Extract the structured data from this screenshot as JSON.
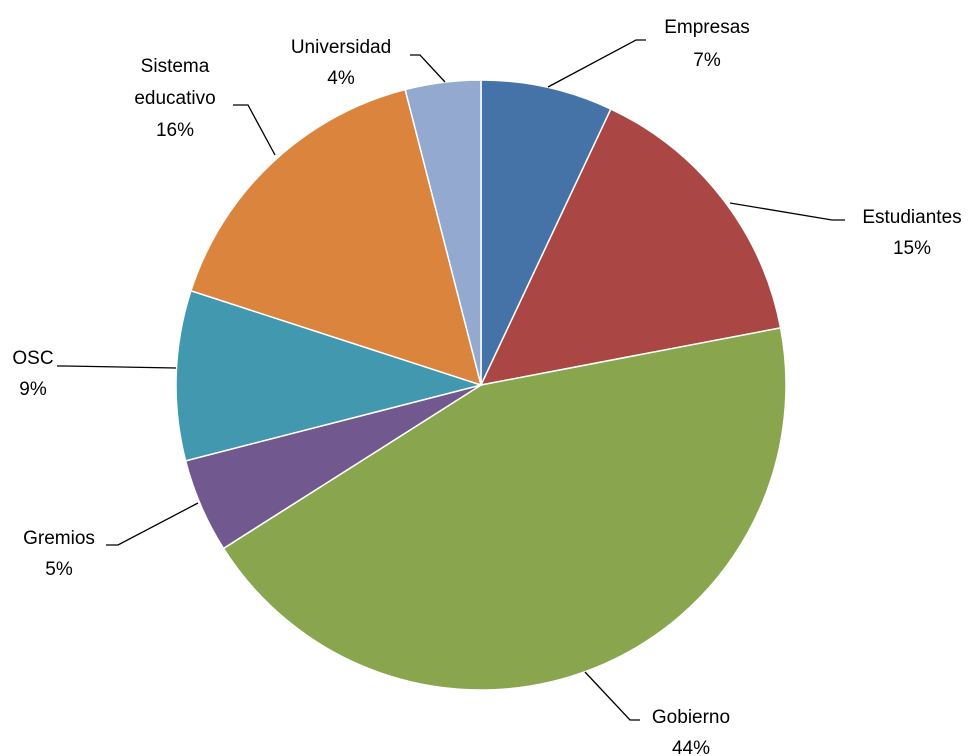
{
  "chart_data": {
    "type": "pie",
    "start_angle_deg": 0,
    "direction": "clockwise",
    "legend": "none",
    "slices": [
      {
        "name": "Empresas",
        "value": 7,
        "label": "7%",
        "color": "#4572A7"
      },
      {
        "name": "Estudiantes",
        "value": 15,
        "label": "15%",
        "color": "#AA4643"
      },
      {
        "name": "Gobierno",
        "value": 44,
        "label": "44%",
        "color": "#89A54E"
      },
      {
        "name": "Gremios",
        "value": 5,
        "label": "5%",
        "color": "#71588F"
      },
      {
        "name": "OSC",
        "value": 9,
        "label": "9%",
        "color": "#4198AF"
      },
      {
        "name": "Sistema educativo",
        "value": 16,
        "label": "16%",
        "color": "#DB843D"
      },
      {
        "name": "Universidad",
        "value": 4,
        "label": "4%",
        "color": "#93A9CF"
      }
    ]
  }
}
